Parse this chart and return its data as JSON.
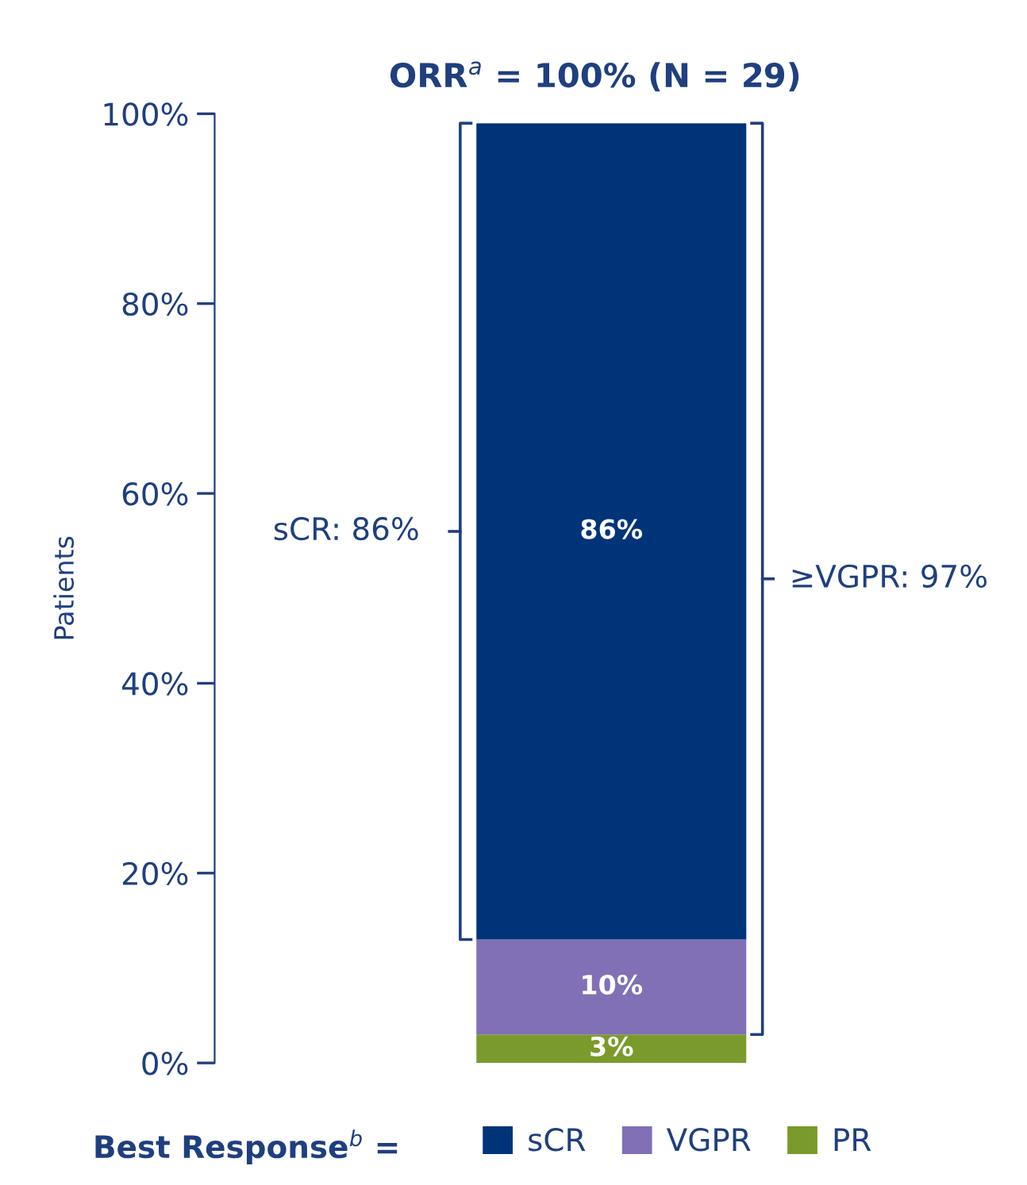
{
  "chart_data": {
    "type": "bar",
    "title": "ORR$^{a}$ = 100% (N = 29)",
    "ylabel": "Patients",
    "legend_title": "Best Response$^{b}$ =",
    "categories": [
      null
    ],
    "stacked": true,
    "series": [
      {
        "name": "PR",
        "color": "#7a9a2b",
        "values": [
          3
        ],
        "value_labels": [
          "3%"
        ]
      },
      {
        "name": "VGPR",
        "color": "#8170b5",
        "values": [
          10
        ],
        "value_labels": [
          "10%"
        ]
      },
      {
        "name": "sCR",
        "color": "#003478",
        "values": [
          86
        ],
        "value_labels": [
          "86%"
        ]
      }
    ],
    "ylim": [
      0,
      100
    ],
    "yticks": [
      {
        "value": 0,
        "label": "0%"
      },
      {
        "value": 20,
        "label": "20%"
      },
      {
        "value": 40,
        "label": "40%"
      },
      {
        "value": 60,
        "label": "60%"
      },
      {
        "value": 80,
        "label": "80%"
      },
      {
        "value": 100,
        "label": "100%"
      }
    ],
    "annotations": [
      "sCR: 86%",
      "≥VGPR: 97%"
    ],
    "legend": "bottom",
    "grid": false
  }
}
